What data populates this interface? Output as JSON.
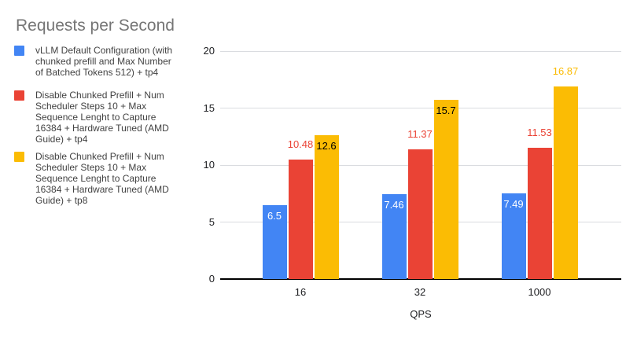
{
  "title": "Requests per Second",
  "colors": {
    "background": "#ffffff",
    "title_text": "#757575",
    "legend_text": "#424242",
    "axis_text": "#202124",
    "gridline": "#dadce0",
    "baseline": "#000000",
    "series_blue": "#4285F4",
    "series_red": "#EA4335",
    "series_yellow": "#FBBC04"
  },
  "legend": {
    "position": "left",
    "items": [
      {
        "label": "vLLM Default Configuration (with\nchunked prefill and Max Number\nof Batched Tokens 512) + tp4",
        "color": "#4285F4"
      },
      {
        "label": "Disable Chunked Prefill + Num\nScheduler Steps 10 + Max\nSequence Lenght to Capture\n16384 + Hardware Tuned (AMD\nGuide) + tp4",
        "color": "#EA4335"
      },
      {
        "label": "Disable Chunked Prefill + Num\nScheduler Steps 10 + Max\nSequence Lenght to Capture\n16384 + Hardware Tuned (AMD\nGuide) + tp8",
        "color": "#FBBC04"
      }
    ]
  },
  "chart_data": {
    "type": "bar",
    "title": "Requests per Second",
    "xlabel": "QPS",
    "ylabel": "",
    "categories": [
      "16",
      "32",
      "1000"
    ],
    "ylim": [
      0,
      20
    ],
    "yticks": [
      0,
      5,
      10,
      15,
      20
    ],
    "grid": true,
    "legend_position": "left",
    "series": [
      {
        "name": "vLLM Default Configuration (with chunked prefill and Max Number of Batched Tokens 512) + tp4",
        "color": "#4285F4",
        "values": [
          6.5,
          7.46,
          7.49
        ],
        "data_labels": [
          {
            "text": "6.5",
            "placement": "inside",
            "color": "#ffffff"
          },
          {
            "text": "7.46",
            "placement": "inside",
            "color": "#ffffff"
          },
          {
            "text": "7.49",
            "placement": "inside",
            "color": "#ffffff"
          }
        ]
      },
      {
        "name": "Disable Chunked Prefill + Num Scheduler Steps 10 + Max Sequence Lenght to Capture 16384 + Hardware Tuned (AMD Guide) + tp4",
        "color": "#EA4335",
        "values": [
          10.48,
          11.37,
          11.53
        ],
        "data_labels": [
          {
            "text": "10.48",
            "placement": "outside",
            "color": "#EA4335"
          },
          {
            "text": "11.37",
            "placement": "outside",
            "color": "#EA4335"
          },
          {
            "text": "11.53",
            "placement": "outside",
            "color": "#EA4335"
          }
        ]
      },
      {
        "name": "Disable Chunked Prefill + Num Scheduler Steps 10 + Max Sequence Lenght to Capture 16384 + Hardware Tuned (AMD Guide) + tp8",
        "color": "#FBBC04",
        "values": [
          12.6,
          15.7,
          16.87
        ],
        "data_labels": [
          {
            "text": "12.6",
            "placement": "inside",
            "color": "#000000"
          },
          {
            "text": "15.7",
            "placement": "inside",
            "color": "#000000"
          },
          {
            "text": "16.87",
            "placement": "outside",
            "color": "#FBBC04"
          }
        ]
      }
    ]
  }
}
